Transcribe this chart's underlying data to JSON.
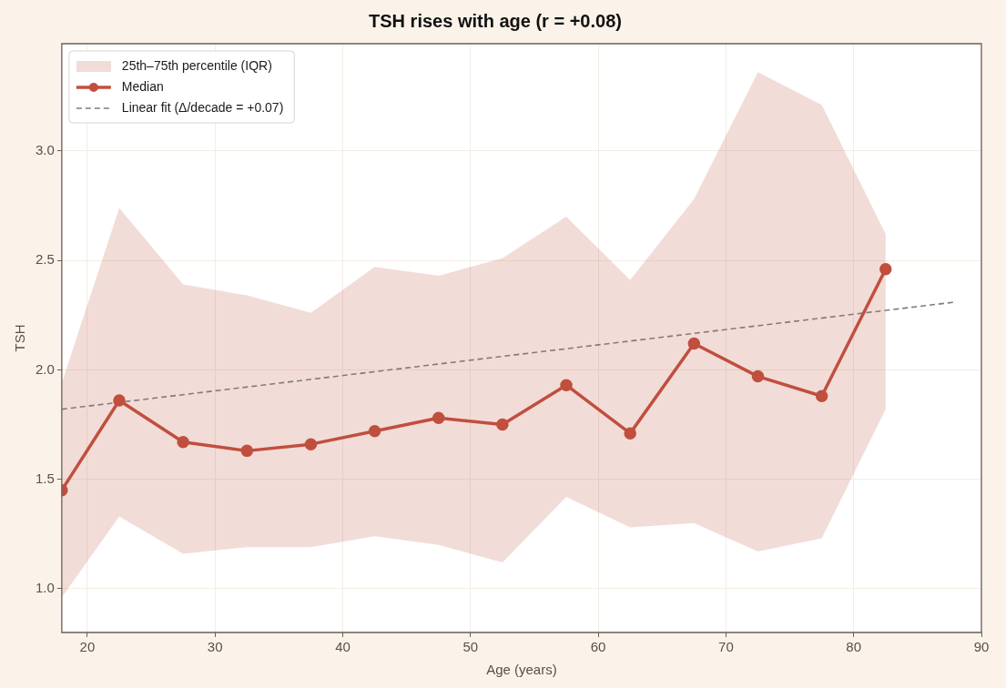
{
  "chart_data": {
    "type": "line",
    "title": "TSH rises with age (r = +0.08)",
    "xlabel": "Age (years)",
    "ylabel": "TSH",
    "xlim": [
      18,
      90
    ],
    "xticks": [
      20,
      30,
      40,
      50,
      60,
      70,
      80,
      90
    ],
    "ylim": [
      0.8,
      3.49
    ],
    "yticks": [
      {
        "value": 1,
        "label": "1.0"
      },
      {
        "value": 1.5,
        "label": "1.5"
      },
      {
        "value": 2,
        "label": "2.0"
      },
      {
        "value": 2.5,
        "label": "2.5"
      },
      {
        "value": 3,
        "label": "3.0"
      }
    ],
    "grid": true,
    "legend": "top left",
    "annotations": [
      "25th–75th percentile (IQR)"
    ],
    "series": [
      {
        "name": "Median",
        "type": "line",
        "color": "#c04f3e",
        "marker": "circle",
        "line_style": "solid",
        "x": [
          18,
          22.5,
          27.5,
          32.5,
          37.5,
          42.5,
          47.5,
          52.5,
          57.5,
          62.5,
          67.5,
          72.5,
          77.5,
          82.5
        ],
        "values": [
          1.45,
          1.86,
          1.67,
          1.63,
          1.66,
          1.72,
          1.78,
          1.75,
          1.93,
          1.71,
          2.12,
          1.97,
          1.88,
          2.46
        ],
        "lower": [
          0.96,
          1.33,
          1.16,
          1.19,
          1.19,
          1.24,
          1.2,
          1.12,
          1.42,
          1.28,
          1.3,
          1.17,
          1.23,
          1.82
        ],
        "upper": [
          1.94,
          2.74,
          2.39,
          2.34,
          2.26,
          2.47,
          2.43,
          2.51,
          2.7,
          2.41,
          2.78,
          3.36,
          3.21,
          2.62
        ]
      },
      {
        "name": "Linear fit (Δ/decade = +0.07)",
        "type": "line",
        "color": "#857a76",
        "marker": "none",
        "line_style": "dashed",
        "x": [
          18,
          88
        ],
        "values": [
          1.82,
          2.31
        ]
      }
    ]
  }
}
